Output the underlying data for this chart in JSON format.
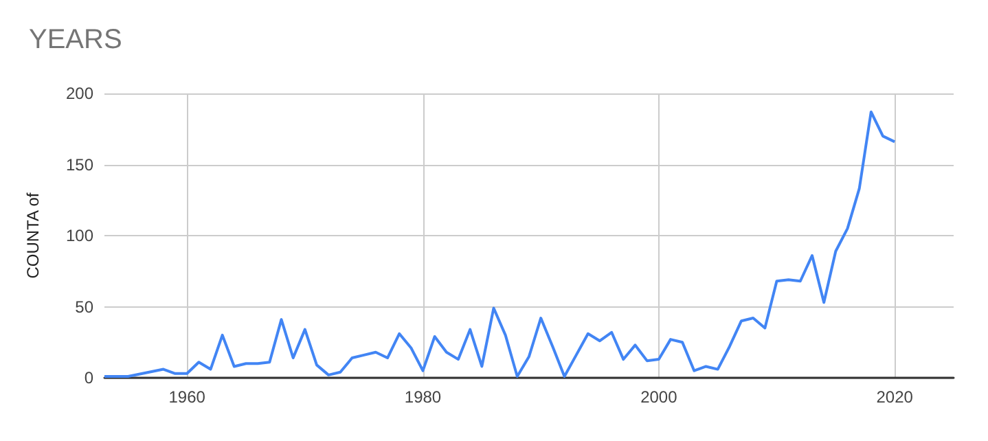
{
  "chart_data": {
    "type": "line",
    "title": "YEARS",
    "ylabel": "COUNTA of",
    "x": [
      1953,
      1955,
      1958,
      1959,
      1960,
      1961,
      1962,
      1963,
      1964,
      1965,
      1966,
      1967,
      1968,
      1969,
      1970,
      1971,
      1972,
      1973,
      1974,
      1975,
      1976,
      1977,
      1978,
      1979,
      1980,
      1981,
      1982,
      1983,
      1984,
      1985,
      1986,
      1987,
      1988,
      1989,
      1990,
      1991,
      1992,
      1993,
      1994,
      1995,
      1996,
      1997,
      1998,
      1999,
      2000,
      2001,
      2002,
      2003,
      2004,
      2005,
      2006,
      2007,
      2008,
      2009,
      2010,
      2011,
      2012,
      2013,
      2014,
      2015,
      2016,
      2017,
      2018,
      2019,
      2020
    ],
    "series": [
      {
        "color": "#4285f4",
        "values": [
          1,
          1,
          6,
          3,
          3,
          11,
          6,
          30,
          8,
          10,
          10,
          11,
          41,
          14,
          34,
          9,
          2,
          4,
          14,
          16,
          18,
          14,
          31,
          21,
          5,
          29,
          18,
          13,
          34,
          8,
          49,
          30,
          1,
          15,
          42,
          22,
          1,
          16,
          31,
          26,
          32,
          13,
          23,
          12,
          13,
          27,
          25,
          5,
          8,
          6,
          22,
          40,
          42,
          35,
          68,
          69,
          68,
          86,
          53,
          89,
          105,
          133,
          187,
          170,
          166
        ]
      }
    ],
    "xlim": [
      1953,
      2025
    ],
    "xticks": [
      1960,
      1980,
      2000,
      2020
    ],
    "ylim": [
      0,
      200
    ],
    "yticks": [
      0,
      50,
      100,
      150,
      200
    ],
    "grid": true,
    "marker": "none",
    "line_style": "solid"
  }
}
